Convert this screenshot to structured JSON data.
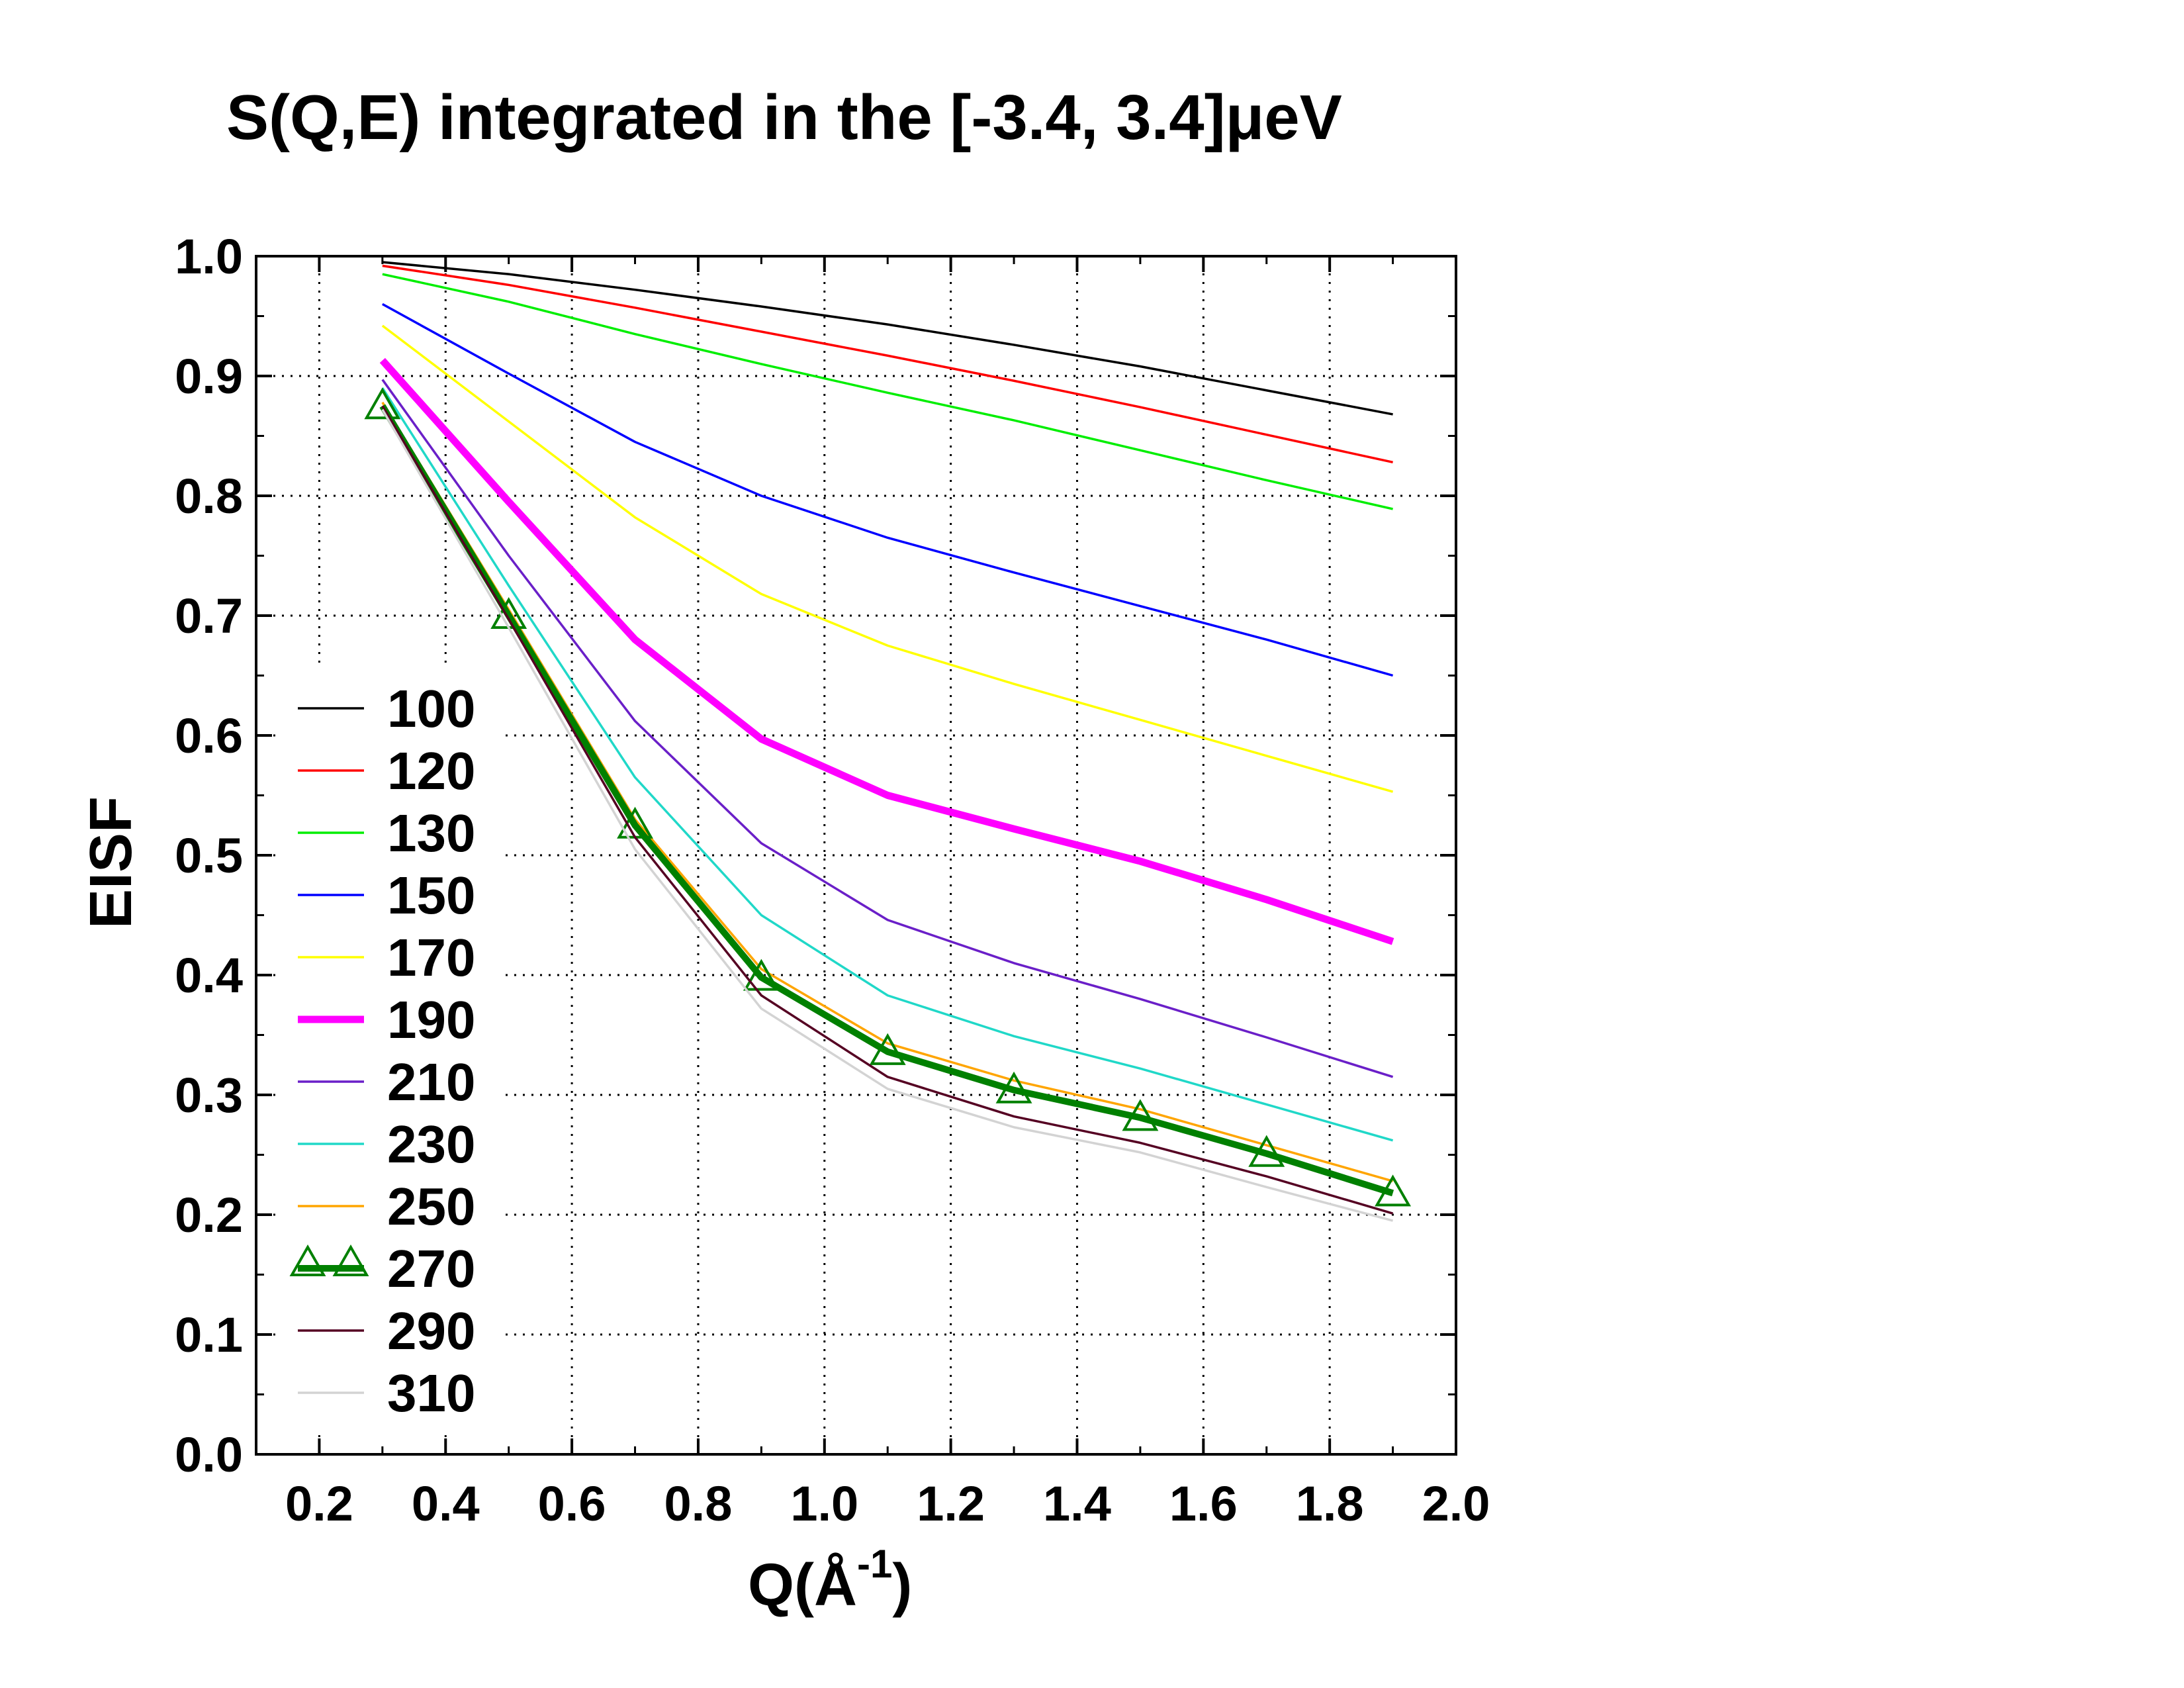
{
  "chart_data": {
    "type": "line",
    "title": "S(Q,E) integrated in the [-3.4, 3.4]μeV",
    "xlabel": "Q(Å",
    "xlabel_sup": "-1",
    "xlabel_suffix": ")",
    "ylabel": "EISF",
    "xlim": [
      0.1,
      2.0
    ],
    "ylim": [
      0.0,
      1.0
    ],
    "xticks": [
      "0.2",
      "0.4",
      "0.6",
      "0.8",
      "1.0",
      "1.2",
      "1.4",
      "1.6",
      "1.8",
      "2.0"
    ],
    "yticks": [
      "0.0",
      "0.1",
      "0.2",
      "0.3",
      "0.4",
      "0.5",
      "0.6",
      "0.7",
      "0.8",
      "0.9",
      "1.0"
    ],
    "grid": true,
    "legend_position": "left",
    "x": [
      0.3,
      0.5,
      0.7,
      0.9,
      1.1,
      1.3,
      1.5,
      1.7,
      1.9
    ],
    "series": [
      {
        "name": "100",
        "color": "#000000",
        "values": [
          0.995,
          0.985,
          0.972,
          0.958,
          0.943,
          0.926,
          0.908,
          0.888,
          0.868
        ]
      },
      {
        "name": "120",
        "color": "#ff0000",
        "values": [
          0.992,
          0.976,
          0.957,
          0.937,
          0.917,
          0.896,
          0.874,
          0.851,
          0.828
        ]
      },
      {
        "name": "130",
        "color": "#00ee00",
        "values": [
          0.985,
          0.962,
          0.935,
          0.91,
          0.886,
          0.863,
          0.838,
          0.813,
          0.789
        ]
      },
      {
        "name": "150",
        "color": "#0000ff",
        "values": [
          0.96,
          0.902,
          0.845,
          0.8,
          0.765,
          0.736,
          0.708,
          0.68,
          0.65
        ]
      },
      {
        "name": "170",
        "color": "#ffff00",
        "values": [
          0.942,
          0.862,
          0.782,
          0.718,
          0.675,
          0.643,
          0.613,
          0.583,
          0.553
        ]
      },
      {
        "name": "190",
        "color": "#ff00ff",
        "values": [
          0.913,
          0.795,
          0.68,
          0.597,
          0.55,
          0.522,
          0.495,
          0.463,
          0.428
        ]
      },
      {
        "name": "210",
        "color": "#6a1fc8",
        "values": [
          0.897,
          0.75,
          0.612,
          0.51,
          0.446,
          0.41,
          0.38,
          0.348,
          0.315
        ]
      },
      {
        "name": "230",
        "color": "#20d8c8",
        "values": [
          0.89,
          0.725,
          0.565,
          0.45,
          0.383,
          0.349,
          0.322,
          0.292,
          0.262
        ]
      },
      {
        "name": "250",
        "color": "#ffa500",
        "values": [
          0.878,
          0.705,
          0.53,
          0.405,
          0.343,
          0.312,
          0.288,
          0.258,
          0.228
        ]
      },
      {
        "name": "270",
        "color": "#008000",
        "marker": "triangle",
        "values": [
          0.875,
          0.7,
          0.525,
          0.398,
          0.336,
          0.304,
          0.281,
          0.251,
          0.218
        ]
      },
      {
        "name": "290",
        "color": "#550022",
        "values": [
          0.875,
          0.697,
          0.515,
          0.383,
          0.315,
          0.282,
          0.26,
          0.232,
          0.201
        ]
      },
      {
        "name": "310",
        "color": "#d3d3d3",
        "values": [
          0.872,
          0.69,
          0.505,
          0.372,
          0.305,
          0.273,
          0.252,
          0.223,
          0.195
        ]
      }
    ]
  }
}
